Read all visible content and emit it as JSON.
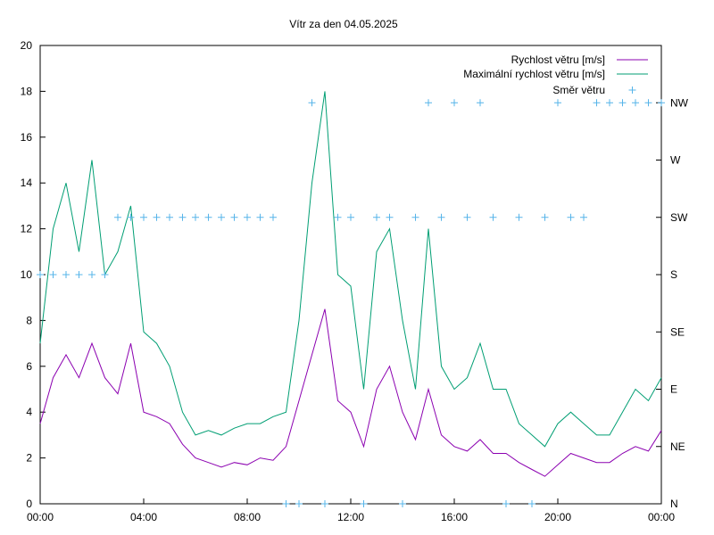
{
  "chart_data": {
    "type": "line",
    "title": "Vítr za den 04.05.2025",
    "xlabel": "",
    "ylabel": "",
    "x_ticks": [
      "00:00",
      "04:00",
      "08:00",
      "12:00",
      "16:00",
      "20:00",
      "00:00"
    ],
    "xlim_hours": [
      0,
      24
    ],
    "ylim": [
      0,
      20
    ],
    "y_ticks": [
      0,
      2,
      4,
      6,
      8,
      10,
      12,
      14,
      16,
      18,
      20
    ],
    "y2_ticks": [
      "N",
      "NE",
      "E",
      "SE",
      "S",
      "SW",
      "W",
      "NW"
    ],
    "grid": false,
    "legend_position": "top-right",
    "colors": {
      "speed": "#8b00b0",
      "gust": "#009e73",
      "direction": "#56b4e9"
    },
    "x_hours": [
      0,
      0.5,
      1,
      1.5,
      2,
      2.5,
      3,
      3.5,
      4,
      4.5,
      5,
      5.5,
      6,
      6.5,
      7,
      7.5,
      8,
      8.5,
      9,
      9.5,
      10,
      10.5,
      11,
      11.5,
      12,
      12.5,
      13,
      13.5,
      14,
      14.5,
      15,
      15.5,
      16,
      16.5,
      17,
      17.5,
      18,
      18.5,
      19,
      19.5,
      20,
      20.5,
      21,
      21.5,
      22,
      22.5,
      23,
      23.5,
      24
    ],
    "series": [
      {
        "name": "Rychlost větru [m/s]",
        "values": [
          3.5,
          5.5,
          6.5,
          5.5,
          7.0,
          5.5,
          4.8,
          7.0,
          4.0,
          3.8,
          3.5,
          2.6,
          2.0,
          1.8,
          1.6,
          1.8,
          1.7,
          2.0,
          1.9,
          2.5,
          4.5,
          6.5,
          8.5,
          4.5,
          4.0,
          2.5,
          5.0,
          6.0,
          4.0,
          2.8,
          5.0,
          3.0,
          2.5,
          2.3,
          2.8,
          2.2,
          2.2,
          1.8,
          1.5,
          1.2,
          1.7,
          2.2,
          2.0,
          1.8,
          1.8,
          2.2,
          2.5,
          2.3,
          3.2
        ]
      },
      {
        "name": "Maximální rychlost větru [m/s]",
        "values": [
          7.0,
          12.0,
          14.0,
          11.0,
          15.0,
          10.0,
          11.0,
          13.0,
          7.5,
          7.0,
          6.0,
          4.0,
          3.0,
          3.2,
          3.0,
          3.3,
          3.5,
          3.5,
          3.8,
          4.0,
          8.0,
          14.0,
          18.0,
          10.0,
          9.5,
          5.0,
          11.0,
          12.0,
          8.0,
          5.0,
          12.0,
          6.0,
          5.0,
          5.5,
          7.0,
          5.0,
          5.0,
          3.5,
          3.0,
          2.5,
          3.5,
          4.0,
          3.5,
          3.0,
          3.0,
          4.0,
          5.0,
          4.5,
          5.5
        ]
      },
      {
        "name": "Směr větru",
        "values": [
          10,
          10,
          10,
          10,
          10,
          10,
          12.5,
          12.5,
          12.5,
          12.5,
          12.5,
          12.5,
          12.5,
          12.5,
          12.5,
          12.5,
          12.5,
          12.5,
          12.5,
          0,
          0,
          17.5,
          0,
          12.5,
          12.5,
          0,
          12.5,
          12.5,
          0,
          12.5,
          17.5,
          12.5,
          17.5,
          12.5,
          17.5,
          12.5,
          0,
          12.5,
          0,
          12.5,
          17.5,
          12.5,
          12.5,
          17.5,
          17.5,
          17.5,
          17.5,
          17.5,
          17.5
        ]
      }
    ]
  }
}
